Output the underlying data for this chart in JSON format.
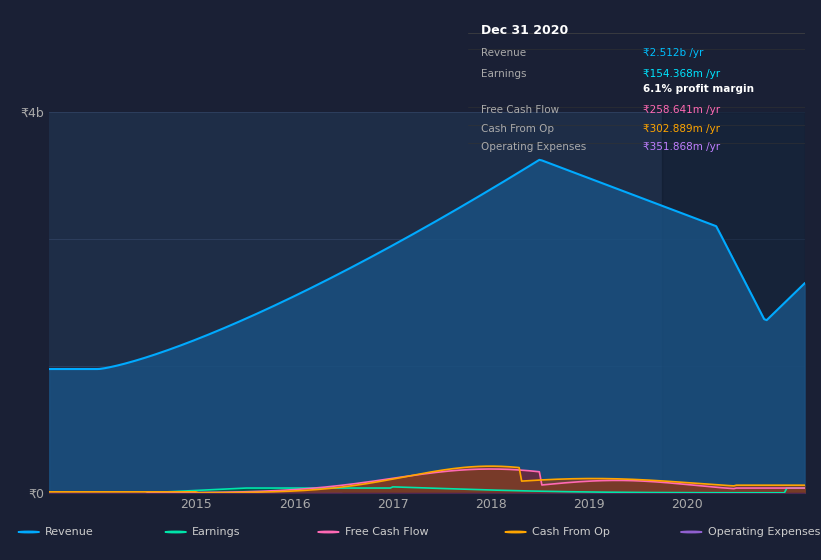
{
  "background_color": "#1a2035",
  "chart_bg_color": "#1e2d47",
  "title_box_bg": "#000000",
  "title_box_text": "Dec 31 2020",
  "table_rows": [
    {
      "label": "Revenue",
      "value": "₹2.512b /yr",
      "value_color": "#00bfff"
    },
    {
      "label": "Earnings",
      "value": "₹154.368m /yr",
      "value_color": "#00e5ff"
    },
    {
      "label": "",
      "value": "6.1% profit margin",
      "value_color": "#ffffff"
    },
    {
      "label": "Free Cash Flow",
      "value": "₹258.641m /yr",
      "value_color": "#ff69b4"
    },
    {
      "label": "Cash From Op",
      "value": "₹302.889m /yr",
      "value_color": "#ffa500"
    },
    {
      "label": "Operating Expenses",
      "value": "₹351.868m /yr",
      "value_color": "#bf7fff"
    }
  ],
  "ytick_labels": [
    "₹0",
    "₹4b"
  ],
  "xtick_labels": [
    "2015",
    "2016",
    "2017",
    "2018",
    "2019",
    "2020"
  ],
  "ylim": [
    0,
    4000000000.0
  ],
  "revenue_color": "#00aaff",
  "revenue_fill": "#1a5080",
  "earnings_color": "#00e5aa",
  "earnings_fill": "#00604030",
  "fcf_color": "#ff69b4",
  "fcf_fill": "#80203040",
  "cashfromop_color": "#ffa500",
  "cashfromop_fill": "#80402000",
  "opex_color": "#9060d0",
  "opex_fill": "#40206040",
  "legend_items": [
    {
      "label": "Revenue",
      "color": "#00aaff"
    },
    {
      "label": "Earnings",
      "color": "#00e5aa"
    },
    {
      "label": "Free Cash Flow",
      "color": "#ff69b4"
    },
    {
      "label": "Cash From Op",
      "color": "#ffa500"
    },
    {
      "label": "Operating Expenses",
      "color": "#9060d0"
    }
  ]
}
